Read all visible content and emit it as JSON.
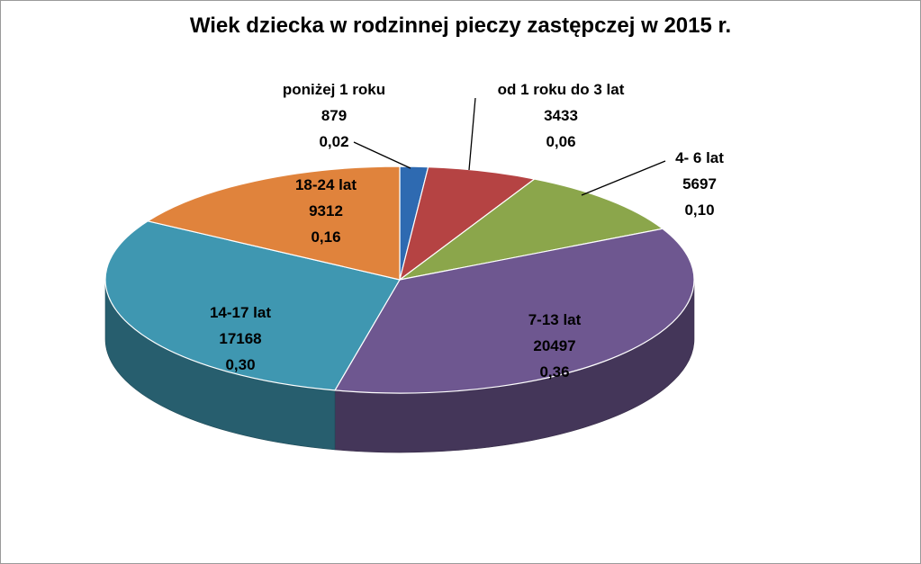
{
  "chart_data": {
    "type": "pie",
    "title": "Wiek dziecka w rodzinnej pieczy zastępczej w 2015 r.",
    "series": [
      {
        "name": "poniżej 1 roku",
        "value": 879,
        "share": "0,02",
        "color": "#2E6AB1"
      },
      {
        "name": "od 1 roku do 3 lat",
        "value": 3433,
        "share": "0,06",
        "color": "#B54343"
      },
      {
        "name": "4- 6 lat",
        "value": 5697,
        "share": "0,10",
        "color": "#8BA64B"
      },
      {
        "name": "7-13 lat",
        "value": 20497,
        "share": "0,36",
        "color": "#6E5790"
      },
      {
        "name": "14-17 lat",
        "value": 17168,
        "share": "0,30",
        "color": "#3F97B1"
      },
      {
        "name": "18-24 lat",
        "value": 9312,
        "share": "0,16",
        "color": "#E0833C"
      }
    ],
    "legend": "none",
    "style": "3d"
  }
}
